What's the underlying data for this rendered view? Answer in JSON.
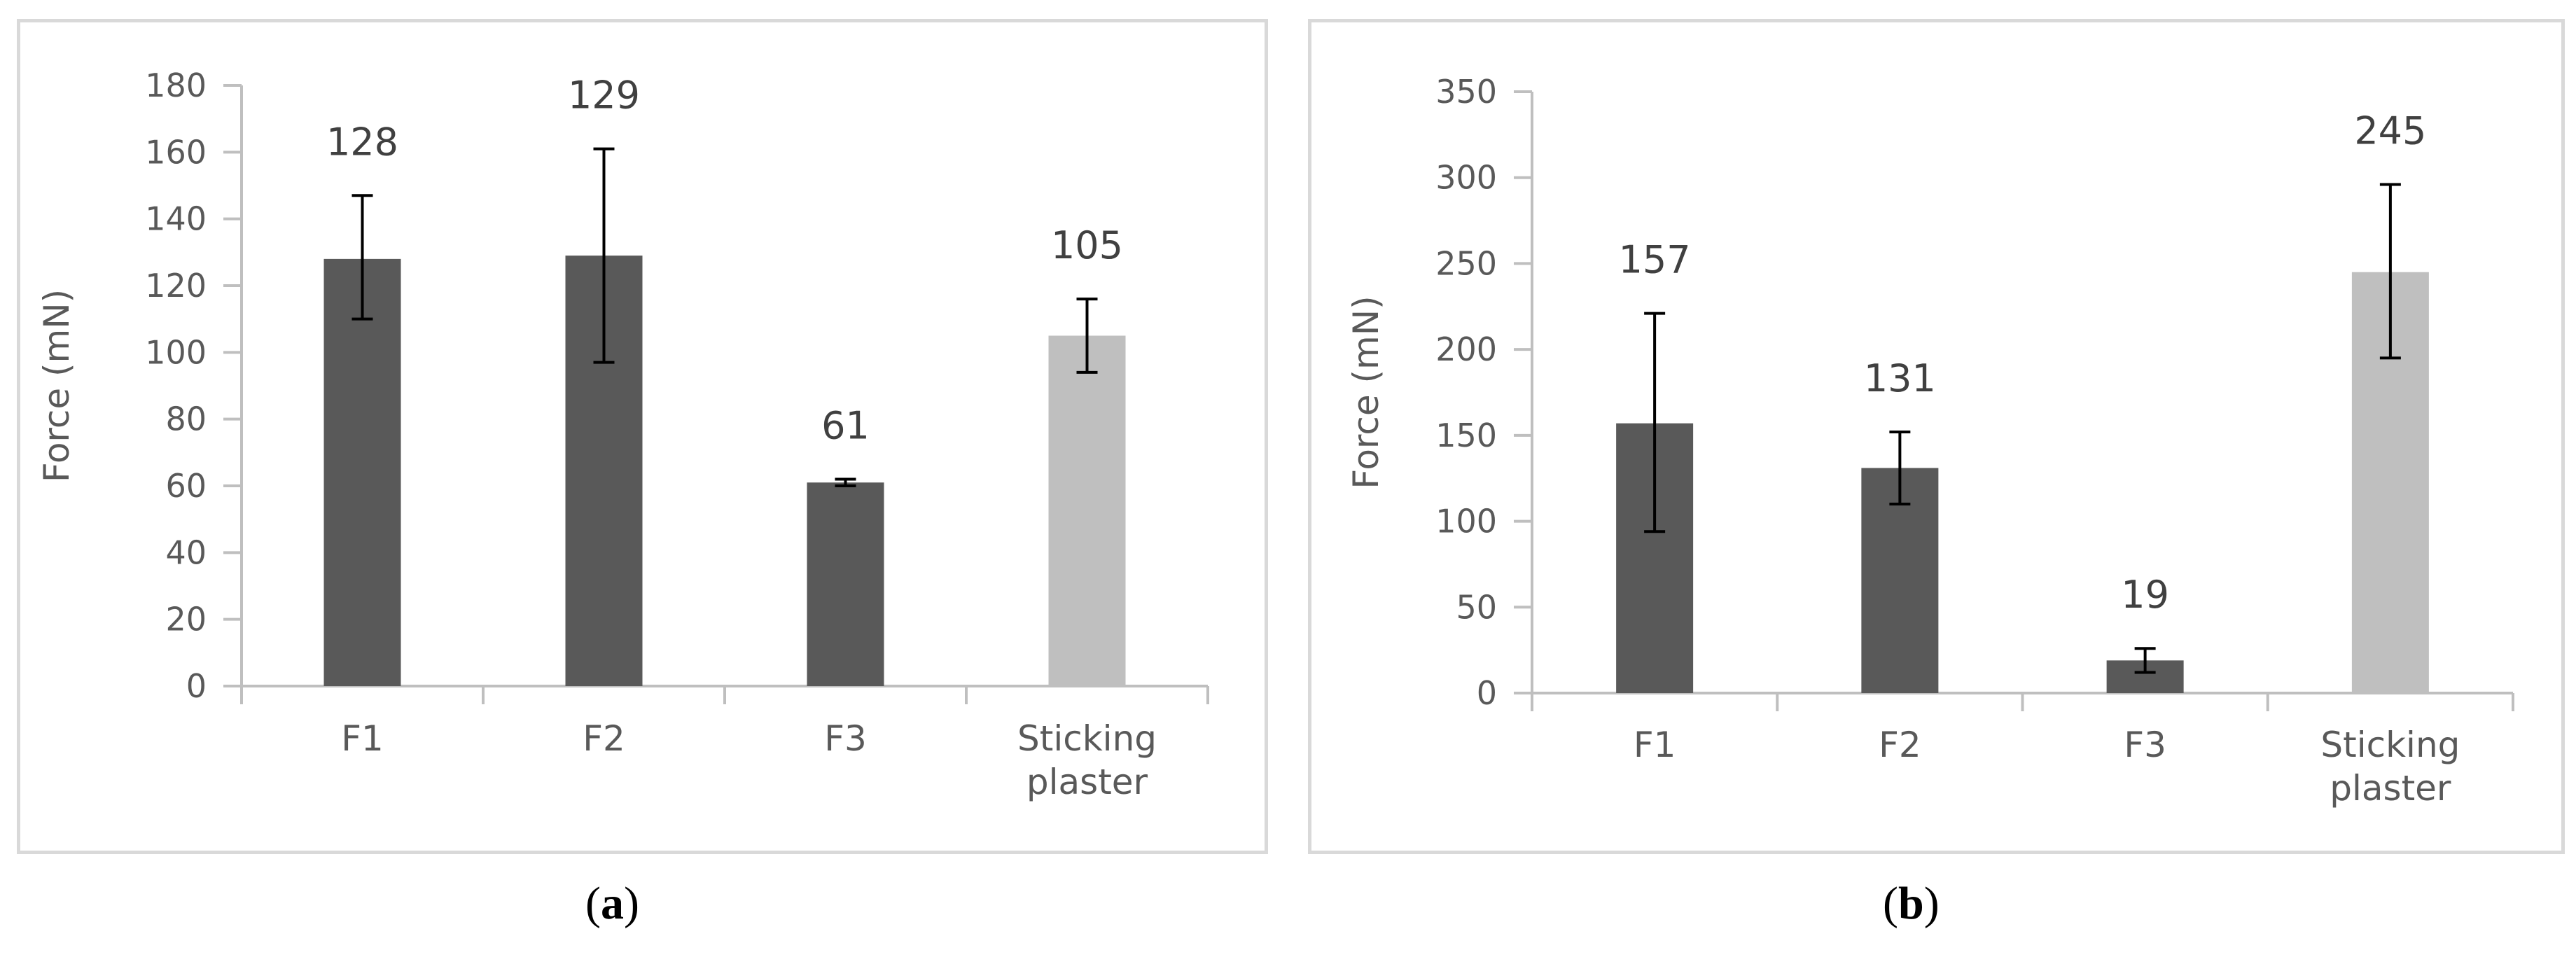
{
  "captions": {
    "a": {
      "open": "(",
      "letter": "a",
      "close": ")"
    },
    "b": {
      "open": "(",
      "letter": "b",
      "close": ")"
    }
  },
  "colors": {
    "formulation_bar": "#595959",
    "reference_bar": "#bfbfbf",
    "axis": "#bfbfbf",
    "error_bar": "#000000"
  },
  "chart_data": [
    {
      "id": "a",
      "type": "bar",
      "title": "",
      "xlabel": "",
      "ylabel": "Force (mN)",
      "ylim": [
        0,
        180
      ],
      "yticks": [
        0,
        20,
        40,
        60,
        80,
        100,
        120,
        140,
        160,
        180
      ],
      "grid": false,
      "legend": "none",
      "categories": [
        [
          "F1"
        ],
        [
          "F2"
        ],
        [
          "F3"
        ],
        [
          "Sticking",
          "plaster"
        ]
      ],
      "values": [
        128,
        129,
        61,
        105
      ],
      "error_low": [
        110,
        97,
        60,
        94
      ],
      "error_high": [
        147,
        161,
        62,
        116
      ],
      "data_labels": [
        "128",
        "129",
        "61",
        "105"
      ],
      "bar_colors": [
        "#595959",
        "#595959",
        "#595959",
        "#bfbfbf"
      ]
    },
    {
      "id": "b",
      "type": "bar",
      "title": "",
      "xlabel": "",
      "ylabel": "Force (mN)",
      "ylim": [
        0,
        350
      ],
      "yticks": [
        0,
        50,
        100,
        150,
        200,
        250,
        300,
        350
      ],
      "grid": false,
      "legend": "none",
      "categories": [
        [
          "F1"
        ],
        [
          "F2"
        ],
        [
          "F3"
        ],
        [
          "Sticking",
          "plaster"
        ]
      ],
      "values": [
        157,
        131,
        19,
        245
      ],
      "error_low": [
        94,
        110,
        12,
        195
      ],
      "error_high": [
        221,
        152,
        26,
        296
      ],
      "data_labels": [
        "157",
        "131",
        "19",
        "245"
      ],
      "bar_colors": [
        "#595959",
        "#595959",
        "#595959",
        "#bfbfbf"
      ]
    }
  ]
}
